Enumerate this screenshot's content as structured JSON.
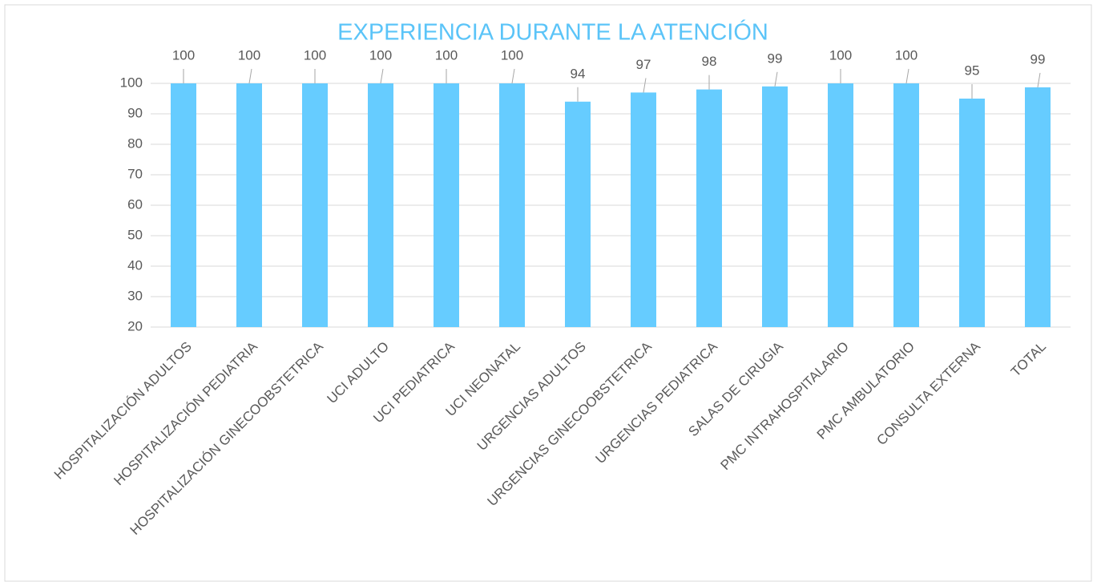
{
  "chart_data": {
    "type": "bar",
    "title": "EXPERIENCIA DURANTE LA ATENCIÓN",
    "categories": [
      "HOSPITALIZACIÓN ADULTOS",
      "HOSPITALIZACIÓN PEDIATRIA",
      "HOSPITALIZACIÓN GINECOOBSTETRICA",
      "UCI ADULTO",
      "UCI PEDIATRICA",
      "UCI NEONATAL",
      "URGENCIAS ADULTOS",
      "URGENCIAS GINECOOBSTETRICA",
      "URGENCIAS PEDIATRICA",
      "SALAS DE CIRUGIA",
      "PMC INTRAHOSPITALARIO",
      "PMC AMBULATORIO",
      "CONSULTA EXTERNA",
      "TOTAL"
    ],
    "values": [
      100,
      100,
      100,
      100,
      100,
      100,
      94,
      97,
      98,
      99,
      100,
      100,
      95,
      98.7
    ],
    "value_labels": [
      "100",
      "100",
      "100",
      "100",
      "100",
      "100",
      "94",
      "97",
      "98",
      "99",
      "100",
      "100",
      "95",
      "99"
    ],
    "color": "#66ccff",
    "ylim": [
      20,
      100
    ],
    "yticks": [
      20,
      30,
      40,
      50,
      60,
      70,
      80,
      90,
      100
    ],
    "grid": true
  }
}
